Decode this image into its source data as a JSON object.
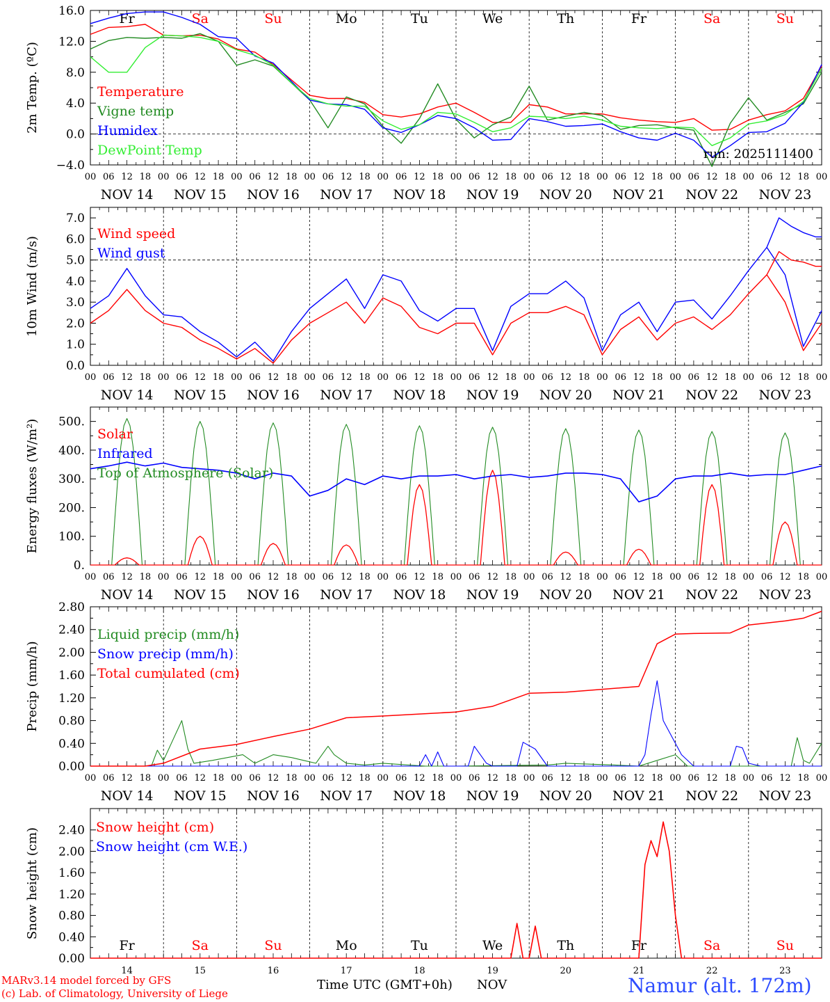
{
  "colors": {
    "red": "#ff0000",
    "green": "#228b22",
    "blue": "#0000ff",
    "lime": "#33ee33",
    "black": "#000000"
  },
  "days": [
    "Fr",
    "Sa",
    "Su",
    "Mo",
    "Tu",
    "We",
    "Th",
    "Fr",
    "Sa",
    "Su"
  ],
  "day_colors": [
    "black",
    "red",
    "red",
    "black",
    "black",
    "black",
    "black",
    "black",
    "red",
    "red"
  ],
  "dates": [
    "NOV 14",
    "NOV 15",
    "NOV 16",
    "NOV 17",
    "NOV 18",
    "NOV 19",
    "NOV 20",
    "NOV 21",
    "NOV 22",
    "NOV 23"
  ],
  "day_numbers": [
    "14",
    "15",
    "16",
    "17",
    "18",
    "19",
    "20",
    "21",
    "22",
    "23"
  ],
  "hour_ticks": [
    "00",
    "06",
    "12",
    "18"
  ],
  "run_label": "run: 2025111400",
  "x_title": "Time UTC (GMT+0h)",
  "x_month": "NOV",
  "model_credit": "MARv3.14 model forced by GFS",
  "lab_credit": "(c) Lab. of Climatology, University of Liege",
  "station": "Namur (alt. 172m)",
  "chart_data": [
    {
      "type": "line",
      "ylabel": "2m Temp. (ºC)",
      "ylim": [
        -4,
        16
      ],
      "yticks": [
        16,
        12,
        8,
        4,
        0,
        -4
      ],
      "ytick_labels": [
        "16.0",
        "12.0",
        "8.0",
        "4.0",
        "0.0",
        "−4.0"
      ],
      "ref_line": 0,
      "show_days": true,
      "x_hours": [
        0,
        6,
        12,
        18,
        24,
        30,
        36,
        42,
        48,
        54,
        60,
        66,
        72,
        78,
        84,
        90,
        96,
        102,
        108,
        114,
        120,
        126,
        132,
        138,
        144,
        150,
        156,
        162,
        168,
        174,
        180,
        186,
        192,
        198,
        204,
        210,
        216,
        222,
        228,
        234,
        240
      ],
      "series": [
        {
          "name": "Temperature",
          "color": "red",
          "values": [
            12.9,
            13.8,
            13.9,
            14.2,
            12.8,
            12.7,
            12.8,
            12.3,
            11.0,
            10.6,
            9.0,
            7.0,
            5.0,
            4.6,
            4.6,
            4.1,
            2.5,
            2.2,
            2.6,
            3.5,
            4.0,
            2.8,
            1.5,
            1.5,
            3.8,
            3.5,
            2.6,
            2.6,
            2.6,
            2.1,
            1.8,
            1.6,
            1.5,
            2.0,
            0.5,
            0.6,
            1.8,
            2.5,
            3.0,
            4.6,
            8.8
          ]
        },
        {
          "name": "Vigne temp",
          "color": "green",
          "values": [
            11.0,
            12.1,
            12.5,
            12.4,
            12.5,
            12.4,
            13.0,
            12.0,
            8.9,
            9.6,
            8.8,
            6.6,
            4.4,
            0.8,
            4.8,
            3.9,
            1.0,
            -1.2,
            2.0,
            6.5,
            1.9,
            -0.5,
            1.2,
            2.2,
            6.2,
            1.8,
            2.3,
            2.8,
            2.4,
            0.6,
            1.1,
            1.2,
            0.8,
            0.5,
            -4.2,
            1.4,
            4.7,
            1.8,
            2.8,
            3.9,
            8.0
          ]
        },
        {
          "name": "Humidex",
          "color": "blue",
          "values": [
            14.3,
            15.0,
            15.6,
            15.8,
            15.8,
            15.1,
            14.2,
            12.6,
            12.4,
            10.1,
            9.2,
            6.8,
            4.4,
            3.9,
            3.8,
            3.2,
            0.8,
            0.2,
            1.2,
            2.4,
            2.0,
            0.8,
            -0.8,
            -0.7,
            2.0,
            1.6,
            1.0,
            1.1,
            1.3,
            0.3,
            -0.5,
            -0.8,
            0.1,
            -0.8,
            -3.0,
            -1.5,
            0.2,
            0.3,
            1.4,
            4.1,
            9.0
          ]
        },
        {
          "name": "DewPoint Temp",
          "color": "lime",
          "values": [
            10.0,
            8.0,
            8.0,
            11.2,
            12.8,
            12.7,
            12.5,
            12.0,
            10.9,
            10.2,
            8.9,
            6.6,
            4.6,
            3.9,
            3.6,
            3.6,
            1.7,
            0.6,
            1.2,
            2.8,
            2.6,
            1.5,
            0.3,
            0.8,
            2.3,
            2.2,
            2.0,
            2.3,
            1.8,
            1.0,
            0.8,
            0.7,
            0.9,
            0.8,
            -1.5,
            -0.5,
            1.3,
            1.7,
            2.5,
            4.2,
            8.5
          ]
        }
      ],
      "legend": [
        "Temperature",
        "Vigne temp",
        "Humidex",
        "DewPoint Temp"
      ]
    },
    {
      "type": "line",
      "ylabel": "10m Wind (m/s)",
      "ylim": [
        0,
        7.5
      ],
      "yticks": [
        7,
        6,
        5,
        4,
        3,
        2,
        1,
        0
      ],
      "ytick_labels": [
        "7.0",
        "6.0",
        "5.0",
        "4.0",
        "3.0",
        "2.0",
        "1.0",
        "0.0"
      ],
      "ref_line": 5,
      "show_days": false,
      "x_hours": [
        0,
        6,
        12,
        18,
        24,
        30,
        36,
        42,
        48,
        54,
        60,
        66,
        72,
        78,
        84,
        90,
        96,
        102,
        108,
        114,
        120,
        126,
        132,
        138,
        144,
        150,
        156,
        162,
        168,
        174,
        180,
        186,
        192,
        198,
        204,
        210,
        216,
        222,
        228,
        234,
        240
      ],
      "series": [
        {
          "name": "Wind speed",
          "color": "red",
          "values": [
            2.0,
            2.6,
            3.6,
            2.6,
            2.0,
            1.8,
            1.2,
            0.8,
            0.3,
            0.8,
            0.1,
            1.2,
            2.0,
            2.5,
            3.0,
            2.0,
            3.2,
            2.8,
            1.8,
            1.5,
            2.0,
            2.0,
            0.5,
            2.0,
            2.5,
            2.5,
            2.8,
            2.4,
            0.5,
            1.7,
            2.3,
            1.2,
            2.0,
            2.3,
            1.7,
            2.4,
            3.4,
            4.3,
            3.0,
            0.7,
            2.0
          ]
        },
        {
          "name": "Wind gust",
          "color": "blue",
          "values": [
            2.7,
            3.3,
            4.6,
            3.3,
            2.4,
            2.3,
            1.6,
            1.1,
            0.4,
            1.1,
            0.2,
            1.6,
            2.7,
            3.4,
            4.1,
            2.7,
            4.3,
            4.0,
            2.6,
            2.1,
            2.7,
            2.7,
            0.7,
            2.8,
            3.4,
            3.4,
            4.0,
            3.2,
            0.7,
            2.4,
            3.0,
            1.6,
            3.0,
            3.1,
            2.2,
            3.3,
            4.5,
            5.6,
            4.3,
            0.9,
            2.6
          ]
        }
      ],
      "extra_series": {
        "x_hours": [
          222,
          226,
          230,
          234,
          238,
          240
        ],
        "speed": [
          4.3,
          5.4,
          5.0,
          4.9,
          4.7,
          4.7
        ],
        "gust": [
          5.6,
          7.0,
          6.6,
          6.3,
          6.1,
          6.1
        ]
      },
      "legend": [
        "Wind speed",
        "Wind gust"
      ]
    },
    {
      "type": "line",
      "ylabel": "Energy fluxes (W/m²)",
      "ylim": [
        0,
        550
      ],
      "yticks": [
        500,
        400,
        300,
        200,
        100,
        0
      ],
      "ytick_labels": [
        "500.",
        "400.",
        "300.",
        "200.",
        "100.",
        "0."
      ],
      "ref_line": null,
      "show_days": false,
      "toa_peaks": [
        510,
        500,
        495,
        490,
        485,
        480,
        475,
        470,
        465,
        460
      ],
      "solar_peaks": [
        25,
        100,
        75,
        70,
        280,
        330,
        45,
        55,
        280,
        150
      ],
      "infrared_values": [
        335,
        345,
        358,
        345,
        355,
        340,
        335,
        330,
        320,
        300,
        320,
        310,
        240,
        260,
        300,
        280,
        310,
        300,
        310,
        310,
        315,
        300,
        310,
        315,
        305,
        310,
        320,
        320,
        315,
        300,
        220,
        240,
        300,
        310,
        310,
        320,
        310,
        315,
        315,
        330,
        345
      ],
      "series_names": [
        "Solar",
        "Infrared",
        "Top of Atmosphere (Solar)"
      ],
      "legend": [
        "Solar",
        "Infrared",
        "Top of Atmosphere (Solar)"
      ]
    },
    {
      "type": "line",
      "ylabel": "Precip (mm/h)",
      "ylim": [
        0,
        2.8
      ],
      "yticks": [
        2.8,
        2.4,
        2.0,
        1.6,
        1.2,
        0.8,
        0.4,
        0.0
      ],
      "ytick_labels": [
        "2.80",
        "2.40",
        "2.00",
        "1.60",
        "1.20",
        "0.80",
        "0.40",
        "0.00"
      ],
      "ref_line": null,
      "show_days": false,
      "total_x": [
        0,
        18,
        24,
        36,
        48,
        60,
        72,
        84,
        96,
        120,
        132,
        144,
        156,
        168,
        180,
        186,
        192,
        198,
        210,
        216,
        228,
        234,
        240
      ],
      "total_values": [
        0,
        0,
        0.05,
        0.3,
        0.38,
        0.52,
        0.65,
        0.85,
        0.88,
        0.95,
        1.05,
        1.28,
        1.3,
        1.35,
        1.4,
        2.15,
        2.32,
        2.33,
        2.34,
        2.48,
        2.55,
        2.6,
        2.72
      ],
      "liquid_x": [
        0,
        20,
        22,
        24,
        30,
        32,
        34,
        40,
        50,
        54,
        60,
        66,
        70,
        74,
        78,
        80,
        84,
        90,
        96,
        110,
        120,
        150,
        156,
        172,
        180,
        186,
        192,
        196,
        200,
        230,
        232,
        234,
        236,
        240
      ],
      "liquid_values": [
        0,
        0,
        0.28,
        0.1,
        0.8,
        0.3,
        0.05,
        0.1,
        0.2,
        0.05,
        0.2,
        0.15,
        0.1,
        0.05,
        0.35,
        0.2,
        0.05,
        0.02,
        0.05,
        0,
        0,
        0.02,
        0.05,
        0.02,
        0,
        0.1,
        0.2,
        0,
        0,
        0,
        0.5,
        0.1,
        0.05,
        0.4
      ],
      "snow_x": [
        0,
        108,
        110,
        112,
        114,
        116,
        120,
        124,
        126,
        130,
        132,
        136,
        140,
        142,
        146,
        150,
        180,
        182,
        184,
        186,
        188,
        190,
        194,
        198,
        200,
        210,
        212,
        214,
        216,
        220,
        240
      ],
      "snow_values": [
        0,
        0,
        0.2,
        0,
        0.25,
        0,
        0,
        0,
        0.35,
        0.05,
        0,
        0,
        0,
        0.42,
        0.3,
        0,
        0,
        0.2,
        0.9,
        1.5,
        0.8,
        0.6,
        0.2,
        0,
        0,
        0,
        0.35,
        0.32,
        0.05,
        0,
        0
      ],
      "legend": [
        "Liquid precip (mm/h)",
        "Snow precip (mm/h)",
        "Total cumulated (cm)"
      ]
    },
    {
      "type": "line",
      "ylabel": "Snow height (cm)",
      "ylim": [
        0,
        2.8
      ],
      "yticks": [
        2.4,
        2.0,
        1.6,
        1.2,
        0.8,
        0.4,
        0.0
      ],
      "ytick_labels": [
        "2.40",
        "2.00",
        "1.60",
        "1.20",
        "0.80",
        "0.40",
        "0.00"
      ],
      "ref_line": null,
      "show_days": true,
      "height_x": [
        0,
        138,
        140,
        142,
        144,
        146,
        148,
        174,
        180,
        182,
        184,
        186,
        188,
        190,
        192,
        194,
        240
      ],
      "height_values": [
        0,
        0,
        0.65,
        0,
        0,
        0.6,
        0,
        0,
        0,
        1.75,
        2.2,
        1.9,
        2.55,
        2.0,
        0.8,
        0,
        0
      ],
      "we_values": [],
      "legend": [
        "Snow height (cm)",
        "Snow height (cm W.E.)"
      ]
    }
  ]
}
